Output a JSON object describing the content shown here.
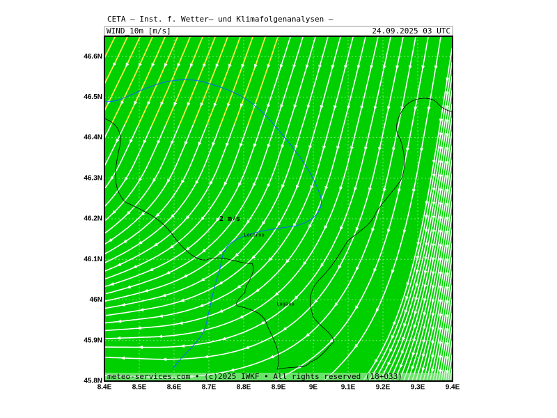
{
  "header": {
    "title": "CETA — Inst. f. Wetter— und Klimafolgenanalysen —",
    "field": "WIND_10m [m/s]",
    "time": "24.09.2025 03 UTC"
  },
  "map": {
    "xlim": [
      8.4,
      9.4
    ],
    "ylim": [
      45.8,
      46.65
    ],
    "xticks": [
      {
        "value": 8.4,
        "label": "8.4E"
      },
      {
        "value": 8.5,
        "label": "8.5E"
      },
      {
        "value": 8.6,
        "label": "8.6E"
      },
      {
        "value": 8.7,
        "label": "8.7E"
      },
      {
        "value": 8.8,
        "label": "8.8E"
      },
      {
        "value": 8.9,
        "label": "8.9E"
      },
      {
        "value": 9.0,
        "label": "9E"
      },
      {
        "value": 9.1,
        "label": "9.1E"
      },
      {
        "value": 9.2,
        "label": "9.2E"
      },
      {
        "value": 9.3,
        "label": "9.3E"
      },
      {
        "value": 9.4,
        "label": "9.4E"
      }
    ],
    "yticks": [
      {
        "value": 45.8,
        "label": "45.8N"
      },
      {
        "value": 45.9,
        "label": "45.9N"
      },
      {
        "value": 46.0,
        "label": "46N"
      },
      {
        "value": 46.1,
        "label": "46.1N"
      },
      {
        "value": 46.2,
        "label": "46.2N"
      },
      {
        "value": 46.3,
        "label": "46.3N"
      },
      {
        "value": 46.4,
        "label": "46.4N"
      },
      {
        "value": 46.5,
        "label": "46.5N"
      },
      {
        "value": 46.6,
        "label": "46.6N"
      }
    ],
    "labels": [
      {
        "text": "2 m/s",
        "lon": 8.76,
        "lat": 46.2
      },
      {
        "text": "Locarno",
        "lon": 8.83,
        "lat": 46.16
      },
      {
        "text": "Lugano",
        "lon": 8.92,
        "lat": 45.99
      }
    ]
  },
  "footer": "meteo-services.com • (c)2025 IWKF • All rights reserved (18+033)"
}
